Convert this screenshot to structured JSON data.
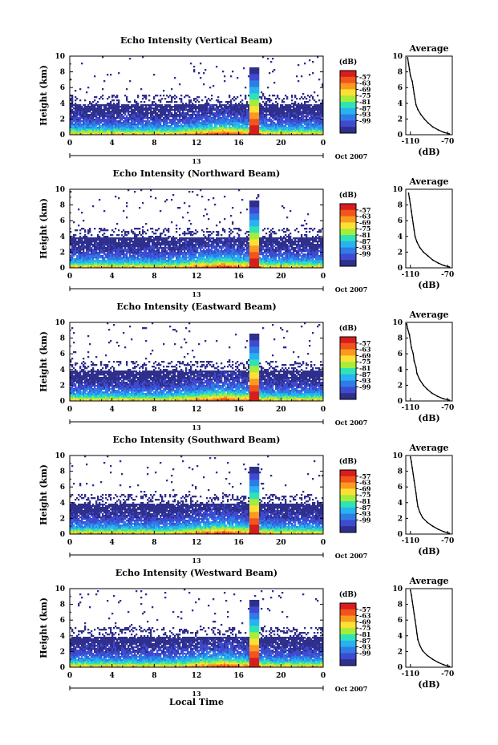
{
  "chart_data": {
    "type": "heatmap",
    "x_tick_labels": [
      "0",
      "4",
      "8",
      "12",
      "16",
      "20",
      "0"
    ],
    "xlim": [
      0,
      24
    ],
    "x_date_label": "Oct 2007",
    "x_marker_label": "13",
    "xlabel": "Local Time",
    "ylabel": "Height (km)",
    "ylim": [
      0,
      10
    ],
    "y_tick_labels": [
      "0",
      "2",
      "4",
      "6",
      "8",
      "10"
    ],
    "colorbar": {
      "unit": "(dB)",
      "levels": [
        "-57",
        "-63",
        "-69",
        "-75",
        "-81",
        "-87",
        "-93",
        "-99"
      ],
      "colors": [
        "#d71d1d",
        "#f2541c",
        "#fb9a1f",
        "#fde132",
        "#a6ec3a",
        "#2fe3b7",
        "#28b2f0",
        "#2f7ce6",
        "#3e4bd1",
        "#2f2f8c"
      ]
    },
    "panels": [
      {
        "title": "Echo Intensity (Vertical Beam)",
        "profile": {
          "title": "Average",
          "xlabel": "(dB)",
          "x_tick_labels": [
            "-110",
            "-70"
          ],
          "xlim": [
            -115,
            -65
          ],
          "y_tick_labels": [
            "0",
            "2",
            "4",
            "6",
            "8",
            "10"
          ],
          "points": [
            [
              -68,
              0.1
            ],
            [
              -74,
              0.3
            ],
            [
              -80,
              0.6
            ],
            [
              -86,
              1.0
            ],
            [
              -91,
              1.5
            ],
            [
              -95,
              2.0
            ],
            [
              -99,
              2.6
            ],
            [
              -102,
              3.2
            ],
            [
              -104,
              3.8
            ],
            [
              -105,
              4.5
            ],
            [
              -106,
              5.2
            ],
            [
              -107,
              6.0
            ],
            [
              -108,
              6.8
            ],
            [
              -110,
              7.5
            ],
            [
              -111,
              8.3
            ],
            [
              -112,
              9.0
            ],
            [
              -113,
              9.8
            ]
          ]
        }
      },
      {
        "title": "Echo Intensity (Northward Beam)",
        "profile": {
          "title": "Average",
          "xlabel": "(dB)",
          "x_tick_labels": [
            "-110",
            "-70"
          ],
          "xlim": [
            -115,
            -65
          ],
          "y_tick_labels": [
            "0",
            "2",
            "4",
            "6",
            "8",
            "10"
          ],
          "points": [
            [
              -68,
              0.1
            ],
            [
              -74,
              0.3
            ],
            [
              -80,
              0.6
            ],
            [
              -86,
              1.0
            ],
            [
              -91,
              1.5
            ],
            [
              -96,
              2.0
            ],
            [
              -100,
              2.6
            ],
            [
              -103,
              3.3
            ],
            [
              -105,
              4.0
            ],
            [
              -106,
              4.8
            ],
            [
              -107,
              5.6
            ],
            [
              -108,
              6.4
            ],
            [
              -109,
              7.2
            ],
            [
              -110,
              8.0
            ],
            [
              -111,
              8.8
            ],
            [
              -112,
              9.5
            ]
          ]
        }
      },
      {
        "title": "Echo Intensity (Eastward Beam)",
        "profile": {
          "title": "Average",
          "xlabel": "(dB)",
          "x_tick_labels": [
            "-110",
            "-70"
          ],
          "xlim": [
            -115,
            -65
          ],
          "y_tick_labels": [
            "0",
            "2",
            "4",
            "6",
            "8",
            "10"
          ],
          "points": [
            [
              -68,
              0.1
            ],
            [
              -75,
              0.3
            ],
            [
              -81,
              0.6
            ],
            [
              -87,
              1.0
            ],
            [
              -92,
              1.5
            ],
            [
              -96,
              2.0
            ],
            [
              -100,
              2.7
            ],
            [
              -103,
              3.5
            ],
            [
              -104,
              4.3
            ],
            [
              -106,
              5.1
            ],
            [
              -107,
              6.0
            ],
            [
              -109,
              6.8
            ],
            [
              -110,
              7.6
            ],
            [
              -111,
              8.4
            ],
            [
              -113,
              9.2
            ],
            [
              -114,
              9.8
            ]
          ]
        }
      },
      {
        "title": "Echo Intensity (Southward Beam)",
        "profile": {
          "title": "Average",
          "xlabel": "(dB)",
          "x_tick_labels": [
            "-110",
            "-70"
          ],
          "xlim": [
            -115,
            -65
          ],
          "y_tick_labels": [
            "0",
            "2",
            "4",
            "6",
            "8",
            "10"
          ],
          "points": [
            [
              -68,
              0.1
            ],
            [
              -74,
              0.3
            ],
            [
              -80,
              0.6
            ],
            [
              -86,
              1.0
            ],
            [
              -92,
              1.5
            ],
            [
              -97,
              2.1
            ],
            [
              -100,
              2.8
            ],
            [
              -102,
              3.5
            ],
            [
              -103,
              4.3
            ],
            [
              -104,
              5.2
            ],
            [
              -105,
              6.0
            ],
            [
              -106,
              6.8
            ],
            [
              -107,
              7.6
            ],
            [
              -108,
              8.4
            ],
            [
              -109,
              9.2
            ],
            [
              -110,
              9.8
            ]
          ]
        }
      },
      {
        "title": "Echo Intensity (Westward Beam)",
        "profile": {
          "title": "Average",
          "xlabel": "(dB)",
          "x_tick_labels": [
            "-110",
            "-70"
          ],
          "xlim": [
            -115,
            -65
          ],
          "y_tick_labels": [
            "0",
            "2",
            "4",
            "6",
            "8",
            "10"
          ],
          "points": [
            [
              -68,
              0.1
            ],
            [
              -74,
              0.3
            ],
            [
              -80,
              0.6
            ],
            [
              -86,
              1.0
            ],
            [
              -92,
              1.5
            ],
            [
              -97,
              2.1
            ],
            [
              -100,
              2.8
            ],
            [
              -102,
              3.5
            ],
            [
              -103,
              4.3
            ],
            [
              -104,
              5.2
            ],
            [
              -105,
              6.0
            ],
            [
              -106,
              6.8
            ],
            [
              -107,
              7.6
            ],
            [
              -108,
              8.4
            ],
            [
              -109,
              9.2
            ],
            [
              -110,
              9.8
            ]
          ]
        }
      }
    ]
  }
}
